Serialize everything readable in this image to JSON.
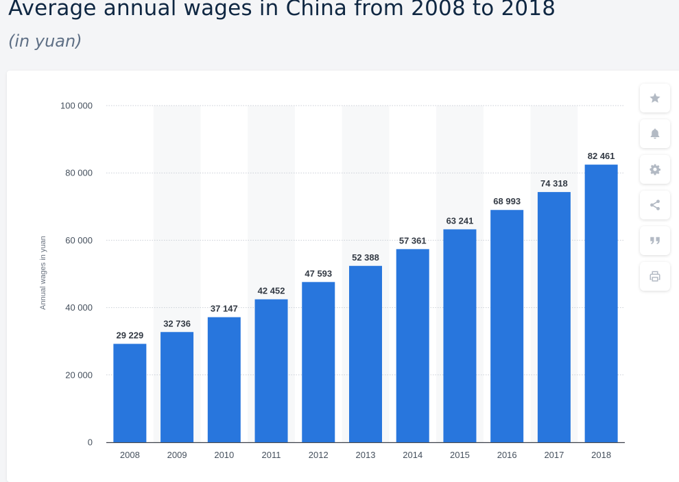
{
  "header": {
    "title": "Average annual wages in China from 2008 to 2018",
    "subtitle": "(in yuan)"
  },
  "toolbar": {
    "icons": [
      "star-icon",
      "bell-icon",
      "gear-icon",
      "share-icon",
      "quote-icon",
      "print-icon"
    ]
  },
  "colors": {
    "bar": "#2876dd",
    "band": "#f7f8f9",
    "grid": "#c9ced6",
    "axis_text": "#444f5c",
    "label_text": "#333a44",
    "icon": "#b3bac4"
  },
  "chart_data": {
    "type": "bar",
    "categories": [
      "2008",
      "2009",
      "2010",
      "2011",
      "2012",
      "2013",
      "2014",
      "2015",
      "2016",
      "2017",
      "2018"
    ],
    "values": [
      29229,
      32736,
      37147,
      42452,
      47593,
      52388,
      57361,
      63241,
      68993,
      74318,
      82461
    ],
    "value_labels": [
      "29 229",
      "32 736",
      "37 147",
      "42 452",
      "47 593",
      "52 388",
      "57 361",
      "63 241",
      "68 993",
      "74 318",
      "82 461"
    ],
    "yticks": [
      0,
      20000,
      40000,
      60000,
      80000,
      100000
    ],
    "ytick_labels": [
      "0",
      "20 000",
      "40 000",
      "60 000",
      "80 000",
      "100 000"
    ],
    "ylim": [
      0,
      100000
    ],
    "xlabel": "",
    "ylabel": "Annual wages in yuan",
    "grid": true,
    "legend": "none"
  }
}
